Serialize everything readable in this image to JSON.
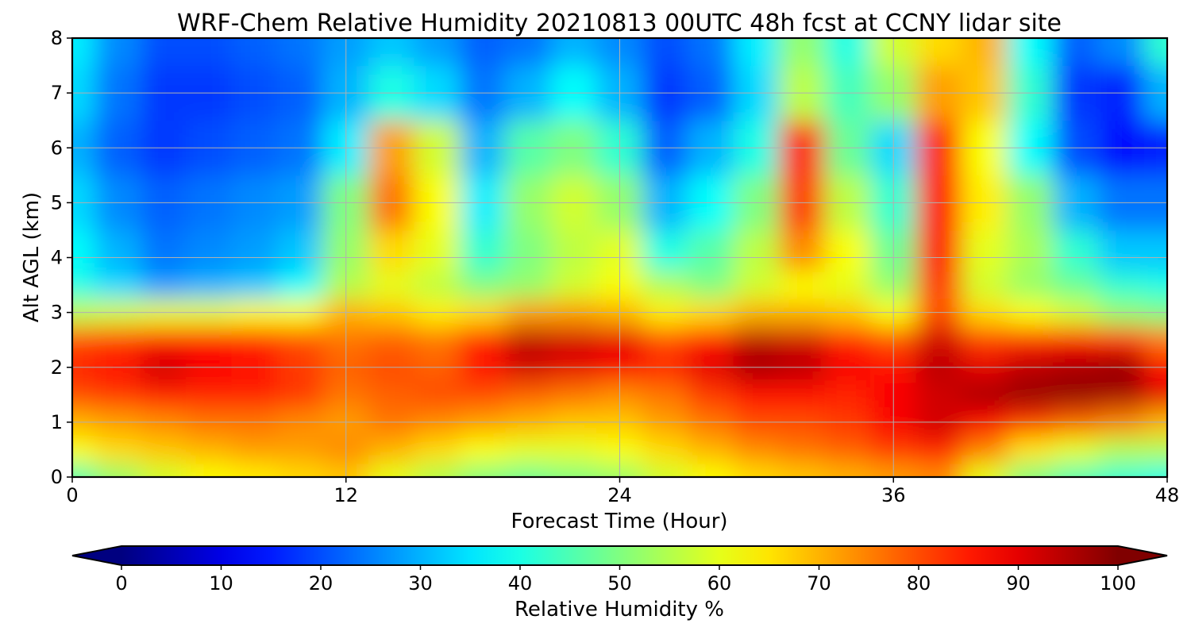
{
  "chart_data": {
    "type": "heatmap",
    "title": "WRF-Chem Relative Humidity 20210813 00UTC 48h fcst at CCNY lidar site",
    "xlabel": "Forecast Time (Hour)",
    "ylabel": "Alt AGL (km)",
    "xlim": [
      0,
      48
    ],
    "ylim": [
      0,
      8
    ],
    "x_ticks": [
      0,
      12,
      24,
      36,
      48
    ],
    "y_ticks": [
      0,
      1,
      2,
      3,
      4,
      5,
      6,
      7,
      8
    ],
    "grid": true,
    "colormap": "jet",
    "colorbar": {
      "label": "Relative Humidity %",
      "range": [
        0,
        100
      ],
      "ticks": [
        0,
        10,
        20,
        30,
        40,
        50,
        60,
        70,
        80,
        90,
        100
      ],
      "extend": "both",
      "orientation": "horizontal"
    },
    "x": [
      0,
      2,
      4,
      6,
      8,
      10,
      12,
      14,
      16,
      18,
      20,
      22,
      24,
      26,
      28,
      30,
      32,
      34,
      36,
      38,
      40,
      42,
      44,
      46,
      48
    ],
    "y": [
      0,
      0.5,
      1,
      1.5,
      2,
      2.5,
      3,
      3.5,
      4,
      5,
      6,
      7,
      8
    ],
    "z": [
      [
        45,
        52,
        58,
        62,
        64,
        66,
        68,
        60,
        55,
        50,
        48,
        50,
        52,
        58,
        62,
        66,
        68,
        70,
        72,
        74,
        60,
        50,
        45,
        42,
        40
      ],
      [
        62,
        66,
        68,
        70,
        72,
        72,
        74,
        70,
        66,
        62,
        60,
        60,
        62,
        66,
        70,
        74,
        76,
        78,
        82,
        84,
        75,
        65,
        60,
        55,
        55
      ],
      [
        70,
        72,
        74,
        76,
        76,
        74,
        72,
        76,
        74,
        72,
        70,
        68,
        68,
        72,
        76,
        80,
        80,
        82,
        88,
        92,
        88,
        82,
        78,
        75,
        70
      ],
      [
        80,
        82,
        85,
        84,
        84,
        82,
        76,
        78,
        80,
        80,
        78,
        76,
        74,
        76,
        82,
        86,
        86,
        84,
        88,
        92,
        96,
        98,
        98,
        96,
        90
      ],
      [
        84,
        86,
        92,
        88,
        86,
        82,
        78,
        80,
        78,
        86,
        92,
        90,
        88,
        84,
        90,
        96,
        94,
        88,
        86,
        94,
        90,
        94,
        96,
        98,
        86
      ],
      [
        80,
        82,
        86,
        86,
        84,
        80,
        76,
        78,
        76,
        84,
        94,
        92,
        90,
        80,
        86,
        94,
        92,
        84,
        80,
        92,
        82,
        84,
        86,
        84,
        76
      ],
      [
        56,
        58,
        60,
        60,
        62,
        62,
        70,
        68,
        64,
        66,
        72,
        72,
        70,
        64,
        66,
        70,
        70,
        68,
        62,
        80,
        66,
        62,
        58,
        52,
        50
      ],
      [
        40,
        34,
        28,
        30,
        32,
        38,
        55,
        60,
        56,
        50,
        52,
        58,
        62,
        55,
        50,
        58,
        62,
        60,
        52,
        82,
        58,
        52,
        48,
        42,
        40
      ],
      [
        38,
        30,
        24,
        26,
        28,
        32,
        52,
        66,
        60,
        42,
        50,
        56,
        60,
        40,
        46,
        56,
        74,
        62,
        48,
        86,
        60,
        54,
        42,
        32,
        32
      ],
      [
        34,
        26,
        22,
        24,
        26,
        28,
        50,
        76,
        62,
        36,
        52,
        58,
        52,
        30,
        38,
        50,
        82,
        56,
        42,
        86,
        64,
        52,
        30,
        24,
        24
      ],
      [
        30,
        22,
        18,
        20,
        22,
        24,
        36,
        72,
        58,
        30,
        46,
        50,
        42,
        22,
        30,
        40,
        84,
        48,
        34,
        84,
        62,
        38,
        20,
        14,
        16
      ],
      [
        34,
        24,
        18,
        18,
        20,
        22,
        30,
        40,
        34,
        24,
        30,
        38,
        30,
        18,
        22,
        34,
        56,
        44,
        52,
        72,
        68,
        42,
        18,
        16,
        30
      ],
      [
        36,
        26,
        20,
        20,
        22,
        24,
        28,
        32,
        28,
        22,
        24,
        30,
        26,
        20,
        24,
        36,
        52,
        40,
        58,
        66,
        70,
        38,
        22,
        26,
        42
      ]
    ]
  }
}
